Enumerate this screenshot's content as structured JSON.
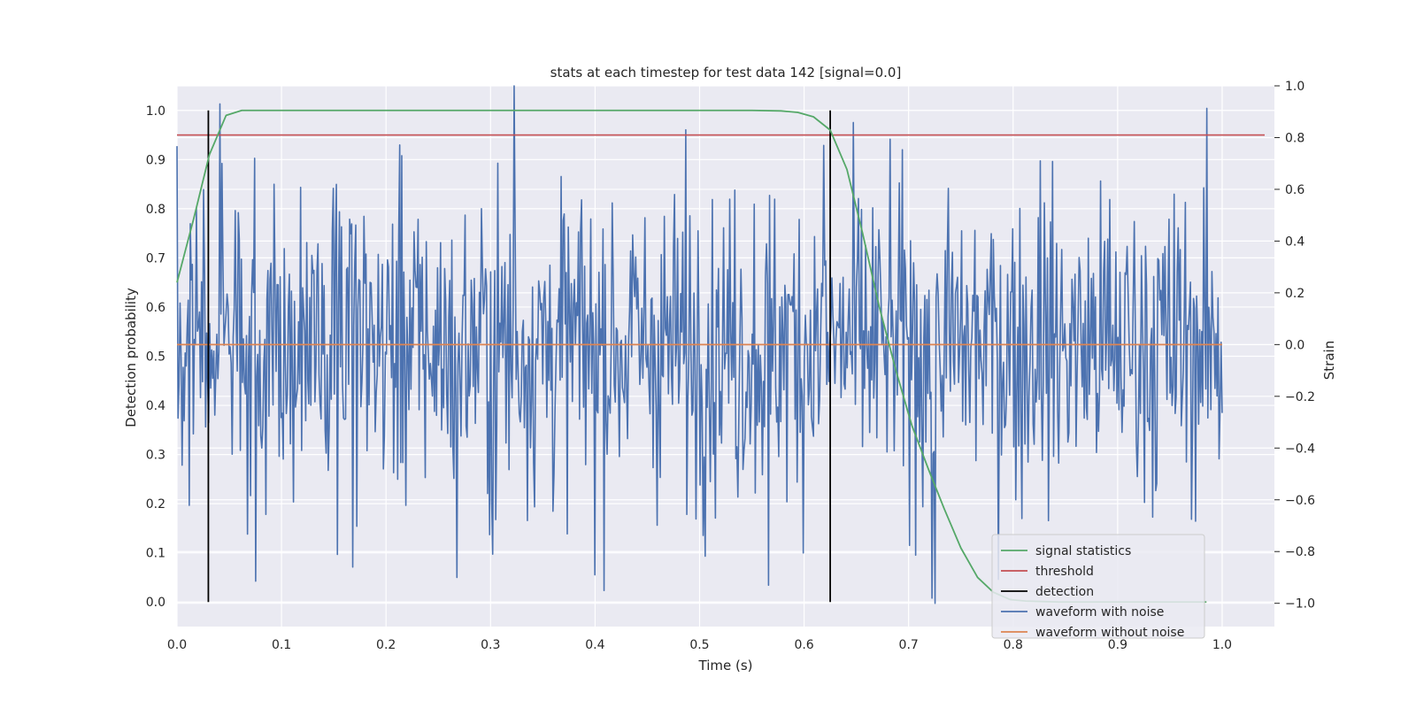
{
  "chart_data": {
    "type": "line",
    "title": "stats at each timestep for test data 142 [signal=0.0]",
    "xlabel": "Time (s)",
    "ylabel": "Detection probability",
    "y2label": "Strain",
    "xlim": [
      0.0,
      1.05
    ],
    "ylim": [
      -0.05,
      1.05
    ],
    "y2lim": [
      -1.09,
      1.0
    ],
    "xticks": [
      "0.0",
      "0.1",
      "0.2",
      "0.3",
      "0.4",
      "0.5",
      "0.6",
      "0.7",
      "0.8",
      "0.9",
      "1.0"
    ],
    "yticks": [
      "0.0",
      "0.1",
      "0.2",
      "0.3",
      "0.4",
      "0.5",
      "0.6",
      "0.7",
      "0.8",
      "0.9",
      "1.0"
    ],
    "y2ticks": [
      "−1.0",
      "−0.8",
      "−0.6",
      "−0.4",
      "−0.2",
      "0.0",
      "0.2",
      "0.4",
      "0.6",
      "0.8",
      "1.0"
    ],
    "grid": true,
    "legend_position": "lower right",
    "threshold": 0.95,
    "detections": [
      0.03,
      0.625
    ],
    "signal_statistics": {
      "x": [
        0.0,
        0.016,
        0.031,
        0.047,
        0.062,
        0.078,
        0.1,
        0.2,
        0.3,
        0.4,
        0.5,
        0.55,
        0.578,
        0.594,
        0.609,
        0.625,
        0.641,
        0.656,
        0.672,
        0.688,
        0.703,
        0.719,
        0.734,
        0.75,
        0.766,
        0.781,
        0.797,
        0.812,
        0.828,
        0.844,
        0.86,
        0.9,
        0.95,
        0.985
      ],
      "y": [
        0.65,
        0.78,
        0.91,
        0.99,
        1.0,
        1.0,
        1.0,
        1.0,
        1.0,
        1.0,
        1.0,
        1.0,
        0.999,
        0.996,
        0.987,
        0.96,
        0.88,
        0.75,
        0.6,
        0.47,
        0.36,
        0.27,
        0.19,
        0.11,
        0.05,
        0.02,
        0.005,
        0.002,
        0.001,
        0.0,
        0.0,
        0.0,
        0.0,
        0.0
      ]
    },
    "waveform_without_noise": {
      "x": [
        0.0,
        1.0
      ],
      "y": [
        0.0,
        0.0
      ]
    },
    "waveform_with_noise": {
      "x_start": 0.0,
      "x_end": 1.0,
      "samples": 1024,
      "approx_std": 0.3,
      "extremes": [
        {
          "x": 0.041,
          "y": 0.93
        },
        {
          "x": 0.074,
          "y": 0.72
        },
        {
          "x": 0.168,
          "y": -0.86
        },
        {
          "x": 0.215,
          "y": 0.73
        },
        {
          "x": 0.268,
          "y": -0.9
        },
        {
          "x": 0.302,
          "y": -0.81
        },
        {
          "x": 0.323,
          "y": 1.0
        },
        {
          "x": 0.4,
          "y": -0.89
        },
        {
          "x": 0.487,
          "y": 0.83
        },
        {
          "x": 0.566,
          "y": -0.93
        },
        {
          "x": 0.619,
          "y": 0.77
        },
        {
          "x": 0.722,
          "y": -0.98
        },
        {
          "x": 0.725,
          "y": -1.0
        },
        {
          "x": 0.826,
          "y": 0.71
        }
      ]
    },
    "legend": [
      {
        "label": "signal statistics",
        "color": "#55a868"
      },
      {
        "label": "threshold",
        "color": "#c44e52"
      },
      {
        "label": "detection",
        "color": "#000000"
      },
      {
        "label": "waveform with noise",
        "color": "#4c72b0"
      },
      {
        "label": "waveform without noise",
        "color": "#dd8452"
      }
    ],
    "colors": {
      "plot_background": "#eaeaf2",
      "grid": "#ffffff",
      "signal_statistics": "#55a868",
      "threshold": "#c44e52",
      "detection": "#000000",
      "waveform_with_noise": "#4c72b0",
      "waveform_without_noise": "#dd8452"
    }
  }
}
